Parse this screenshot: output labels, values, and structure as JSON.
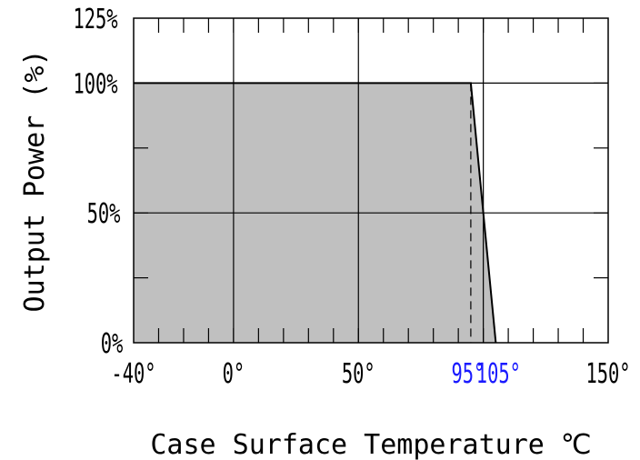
{
  "chart_data": {
    "type": "area",
    "title": "",
    "xlabel": "Case Surface Temperature ℃",
    "ylabel": "Output Power (%)",
    "xlim": [
      -40,
      150
    ],
    "ylim": [
      0,
      125
    ],
    "x_ticks": [
      {
        "value": -40,
        "label": "-40°",
        "color": "#000000"
      },
      {
        "value": 0,
        "label": "0°",
        "color": "#000000"
      },
      {
        "value": 50,
        "label": "50°",
        "color": "#000000"
      },
      {
        "value": 95,
        "label": "95°",
        "color": "#1a1aff"
      },
      {
        "value": 105,
        "label": "105°",
        "color": "#1a1aff"
      },
      {
        "value": 150,
        "label": "150°",
        "color": "#000000"
      }
    ],
    "y_ticks": [
      {
        "value": 0,
        "label": "0%"
      },
      {
        "value": 50,
        "label": "50%"
      },
      {
        "value": 100,
        "label": "100%"
      },
      {
        "value": 125,
        "label": "125%"
      }
    ],
    "x_gridlines": [
      0,
      50,
      100
    ],
    "y_gridlines": [
      50,
      100
    ],
    "x_minor_step": 10,
    "y_minor_step": 25,
    "grid": true,
    "series": [
      {
        "x": [
          -40,
          95,
          100,
          105
        ],
        "y": [
          100,
          100,
          50,
          0
        ],
        "fill_color": "#c0c0c0",
        "line_color": "#000000"
      }
    ],
    "reference_lines": [
      {
        "x": 95,
        "style": "dashed"
      }
    ]
  }
}
